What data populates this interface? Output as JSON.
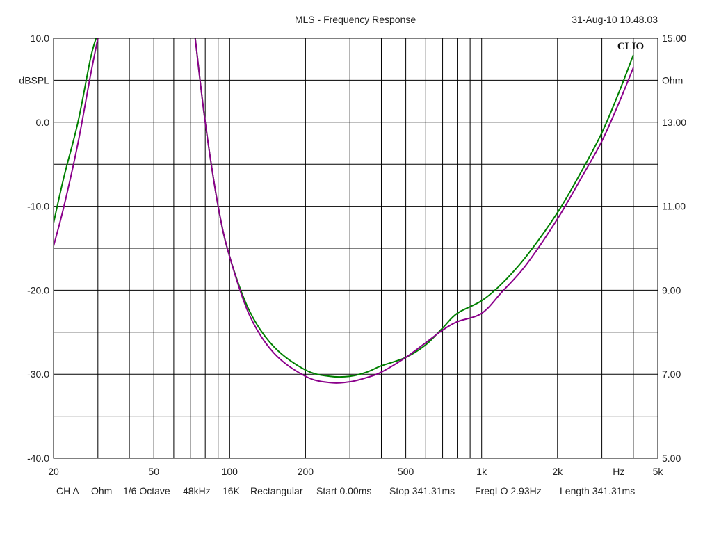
{
  "header": {
    "title": "MLS - Frequency Response",
    "timestamp": "31-Aug-10 10.48.03",
    "logo": "CLIO"
  },
  "footer": {
    "items": [
      "CH A",
      "Ohm",
      "1/6 Octave",
      "48kHz",
      "16K",
      "Rectangular",
      "Start 0.00ms",
      "Stop 341.31ms",
      "FreqLO 2.93Hz",
      "Length 341.31ms"
    ]
  },
  "colors": {
    "background": "#ffffff",
    "grid": "#000000",
    "series_green": "#008000",
    "series_purple": "#8b008b"
  },
  "chart_data": {
    "type": "line",
    "title": "MLS - Frequency Response",
    "x_scale": "log",
    "xlim": [
      20,
      5000
    ],
    "x_ticks": [
      {
        "value": 20,
        "label": "20"
      },
      {
        "value": 50,
        "label": "50"
      },
      {
        "value": 100,
        "label": "100"
      },
      {
        "value": 200,
        "label": "200"
      },
      {
        "value": 500,
        "label": "500"
      },
      {
        "value": 1000,
        "label": "1k"
      },
      {
        "value": 2000,
        "label": "2k"
      },
      {
        "value": 3500,
        "label": "Hz"
      },
      {
        "value": 5000,
        "label": "5k"
      }
    ],
    "y_left": {
      "label": "dBSPL",
      "lim": [
        -40,
        10
      ],
      "ticks": [
        {
          "value": 10,
          "label": "10.0"
        },
        {
          "value": 0,
          "label": "0.0"
        },
        {
          "value": -10,
          "label": "-10.0"
        },
        {
          "value": -20,
          "label": "-20.0"
        },
        {
          "value": -30,
          "label": "-30.0"
        },
        {
          "value": -40,
          "label": "-40.0"
        }
      ]
    },
    "y_right": {
      "label": "Ohm",
      "lim": [
        5,
        15
      ],
      "ticks": [
        {
          "value": 15,
          "label": "15.00"
        },
        {
          "value": 13,
          "label": "13.00"
        },
        {
          "value": 11,
          "label": "11.00"
        },
        {
          "value": 9,
          "label": "9.00"
        },
        {
          "value": 7,
          "label": "7.00"
        },
        {
          "value": 5,
          "label": "5.00"
        }
      ]
    },
    "grid": true,
    "series": [
      {
        "color": "#008000",
        "axis": "right",
        "segments": [
          [
            [
              20,
              10.6
            ],
            [
              22,
              11.7
            ],
            [
              25,
              13.0
            ],
            [
              28,
              14.5
            ],
            [
              29.5,
              15.0
            ]
          ],
          [
            [
              73,
              15.0
            ],
            [
              80,
              13.0
            ],
            [
              90,
              11.0
            ],
            [
              100,
              9.8
            ],
            [
              120,
              8.5
            ],
            [
              150,
              7.65
            ],
            [
              200,
              7.1
            ],
            [
              250,
              6.95
            ],
            [
              300,
              6.95
            ],
            [
              350,
              7.05
            ],
            [
              400,
              7.2
            ],
            [
              500,
              7.4
            ],
            [
              600,
              7.7
            ],
            [
              700,
              8.1
            ],
            [
              800,
              8.45
            ],
            [
              1000,
              8.75
            ],
            [
              1200,
              9.15
            ],
            [
              1500,
              9.8
            ],
            [
              2000,
              10.85
            ],
            [
              2500,
              11.85
            ],
            [
              3000,
              12.75
            ],
            [
              3500,
              13.7
            ],
            [
              4000,
              14.6
            ]
          ]
        ]
      },
      {
        "color": "#8b008b",
        "axis": "right",
        "segments": [
          [
            [
              20,
              10.05
            ],
            [
              22,
              11.0
            ],
            [
              25,
              12.5
            ],
            [
              28,
              14.1
            ],
            [
              30,
              15.0
            ]
          ],
          [
            [
              73,
              15.0
            ],
            [
              80,
              13.0
            ],
            [
              90,
              11.0
            ],
            [
              100,
              9.8
            ],
            [
              120,
              8.4
            ],
            [
              150,
              7.5
            ],
            [
              200,
              6.95
            ],
            [
              250,
              6.8
            ],
            [
              300,
              6.82
            ],
            [
              350,
              6.92
            ],
            [
              400,
              7.05
            ],
            [
              500,
              7.4
            ],
            [
              600,
              7.75
            ],
            [
              700,
              8.05
            ],
            [
              800,
              8.25
            ],
            [
              1000,
              8.45
            ],
            [
              1200,
              8.95
            ],
            [
              1500,
              9.6
            ],
            [
              2000,
              10.7
            ],
            [
              2500,
              11.7
            ],
            [
              3000,
              12.55
            ],
            [
              3500,
              13.45
            ],
            [
              4000,
              14.3
            ]
          ]
        ]
      }
    ]
  }
}
